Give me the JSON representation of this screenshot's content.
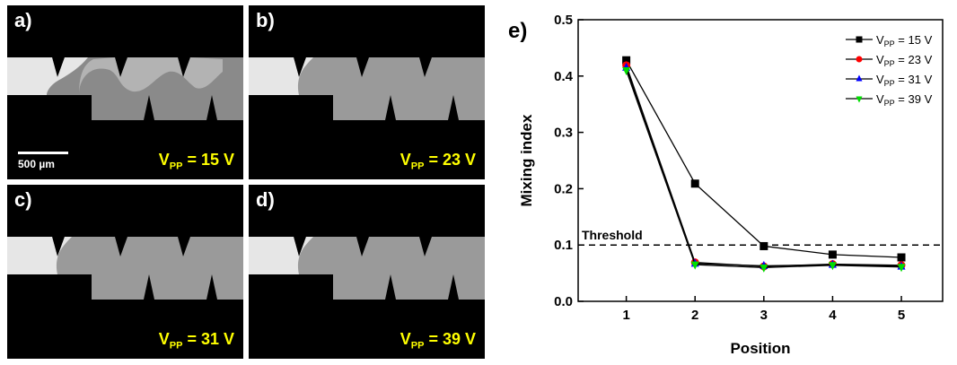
{
  "panels": [
    {
      "label": "a)",
      "voltage": "15 V",
      "vsub": "PP",
      "vprefix": "V",
      "scalebar": "500 µm"
    },
    {
      "label": "b)",
      "voltage": "23 V",
      "vsub": "PP",
      "vprefix": "V"
    },
    {
      "label": "c)",
      "voltage": "31 V",
      "vsub": "PP",
      "vprefix": "V"
    },
    {
      "label": "d)",
      "voltage": "39 V",
      "vsub": "PP",
      "vprefix": "V"
    }
  ],
  "chart_data": {
    "type": "line",
    "panel_label": "e)",
    "xlabel": "Position",
    "ylabel": "Mixing index",
    "x": [
      1,
      2,
      3,
      4,
      5
    ],
    "xlim": [
      0.3,
      5.6
    ],
    "ylim": [
      0.0,
      0.5
    ],
    "xticks": [
      1,
      2,
      3,
      4,
      5
    ],
    "yticks": [
      0.0,
      0.1,
      0.2,
      0.3,
      0.4,
      0.5
    ],
    "threshold": {
      "value": 0.1,
      "label": "Threshold"
    },
    "legend_position": "top-right",
    "grid": false,
    "series": [
      {
        "name_prefix": "V",
        "name_sub": "PP",
        "name_suffix": " = 15 V",
        "color": "#000000",
        "marker": "square",
        "values": [
          0.428,
          0.209,
          0.098,
          0.083,
          0.078
        ]
      },
      {
        "name_prefix": "V",
        "name_sub": "PP",
        "name_suffix": " = 23 V",
        "color": "#ff0000",
        "marker": "circle",
        "values": [
          0.419,
          0.069,
          0.062,
          0.066,
          0.064
        ]
      },
      {
        "name_prefix": "V",
        "name_sub": "PP",
        "name_suffix": " = 31 V",
        "color": "#0000ff",
        "marker": "triangle-up",
        "values": [
          0.415,
          0.067,
          0.063,
          0.065,
          0.062
        ]
      },
      {
        "name_prefix": "V",
        "name_sub": "PP",
        "name_suffix": " = 39 V",
        "color": "#00dd00",
        "marker": "triangle-down",
        "values": [
          0.41,
          0.065,
          0.06,
          0.064,
          0.061
        ]
      }
    ]
  }
}
